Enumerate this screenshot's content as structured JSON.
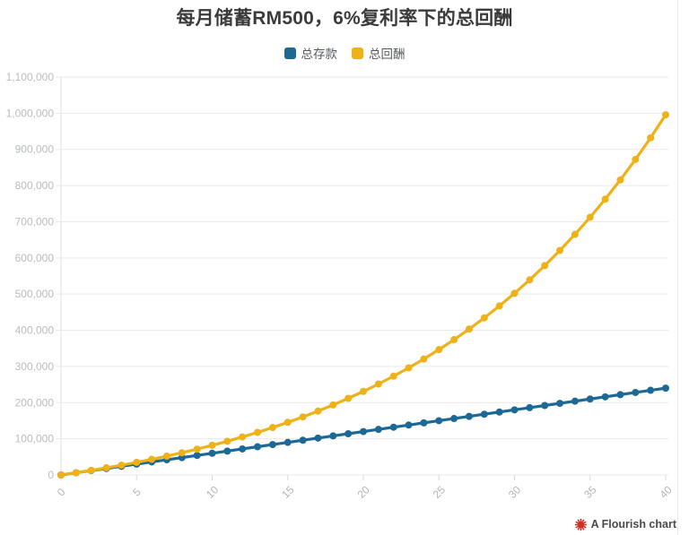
{
  "title": "每月储蓄RM500，6%复利率下的总回酬",
  "footer": {
    "label": "A Flourish chart",
    "logo_color": "#d42a20"
  },
  "chart_data": {
    "type": "line",
    "title": "每月储蓄RM500，6%复利率下的总回酬",
    "xlabel": "",
    "ylabel": "",
    "x": [
      0,
      1,
      2,
      3,
      4,
      5,
      6,
      7,
      8,
      9,
      10,
      11,
      12,
      13,
      14,
      15,
      16,
      17,
      18,
      19,
      20,
      21,
      22,
      23,
      24,
      25,
      26,
      27,
      28,
      29,
      30,
      31,
      32,
      33,
      34,
      35,
      36,
      37,
      38,
      39,
      40
    ],
    "series": [
      {
        "name": "总存款",
        "color": "#1d6996",
        "values": [
          0,
          6000,
          12000,
          18000,
          24000,
          30000,
          36000,
          42000,
          48000,
          54000,
          60000,
          66000,
          72000,
          78000,
          84000,
          90000,
          96000,
          102000,
          108000,
          114000,
          120000,
          126000,
          132000,
          138000,
          144000,
          150000,
          156000,
          162000,
          168000,
          174000,
          180000,
          186000,
          192000,
          198000,
          204000,
          210000,
          216000,
          222000,
          228000,
          234000,
          240000
        ]
      },
      {
        "name": "总回酬",
        "color": "#efb118",
        "values": [
          0,
          6168,
          12716,
          19668,
          27049,
          34885,
          43204,
          52037,
          61414,
          71370,
          81940,
          93161,
          105075,
          117724,
          131152,
          145409,
          160546,
          176616,
          193677,
          211790,
          231020,
          251437,
          273113,
          296126,
          320558,
          346497,
          374036,
          403273,
          434314,
          467269,
          502257,
          539402,
          578839,
          620708,
          665160,
          712353,
          762457,
          815651,
          872126,
          932085,
          995745
        ]
      }
    ],
    "xlim": [
      0,
      40
    ],
    "ylim": [
      0,
      1100000
    ],
    "x_ticks": [
      0,
      5,
      10,
      15,
      20,
      25,
      30,
      35,
      40
    ],
    "y_ticks": [
      0,
      100000,
      200000,
      300000,
      400000,
      500000,
      600000,
      700000,
      800000,
      900000,
      1000000,
      1100000
    ],
    "y_tick_labels": [
      "0",
      "100,000",
      "200,000",
      "300,000",
      "400,000",
      "500,000",
      "600,000",
      "700,000",
      "800,000",
      "900,000",
      "1,000,000",
      "1,100,000"
    ],
    "grid": "horizontal",
    "legend_position": "top",
    "x_tick_label_rotation": -45,
    "marker": "circle"
  }
}
